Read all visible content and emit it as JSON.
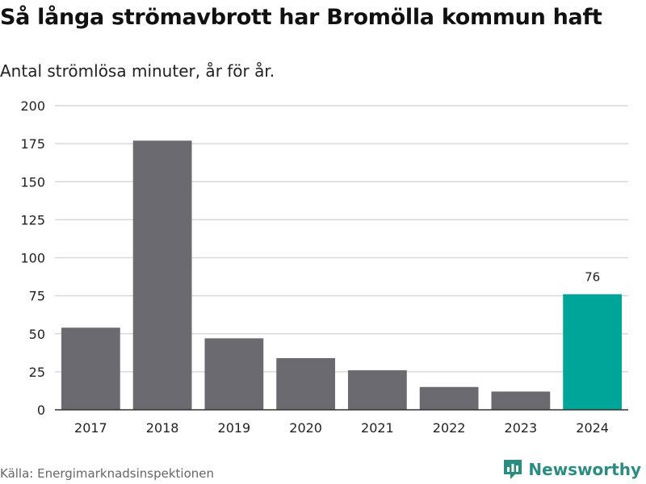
{
  "header": {
    "title": "Så långa strömavbrott har Bromölla kommun haft",
    "subtitle": "Antal strömlösa minuter, år för år."
  },
  "footer": {
    "source": "Källa: Energimarknadsinspektionen",
    "brand": "Newsworthy"
  },
  "colors": {
    "bar": "#6b6a70",
    "highlight": "#00a59a",
    "grid": "#d9d9d9",
    "axis": "#333333",
    "brand": "#2c8c82"
  },
  "chart_data": {
    "type": "bar",
    "title": "Så långa strömavbrott har Bromölla kommun haft",
    "subtitle": "Antal strömlösa minuter, år för år.",
    "categories": [
      "2017",
      "2018",
      "2019",
      "2020",
      "2021",
      "2022",
      "2023",
      "2024"
    ],
    "values": [
      54,
      177,
      47,
      34,
      26,
      15,
      12,
      76
    ],
    "highlight_index": 7,
    "labels": [
      {
        "category": "2024",
        "text": "76"
      }
    ],
    "xlabel": "",
    "ylabel": "",
    "ylim": [
      0,
      200
    ],
    "yticks": [
      0,
      25,
      50,
      75,
      100,
      125,
      150,
      175,
      200
    ],
    "grid": true
  }
}
